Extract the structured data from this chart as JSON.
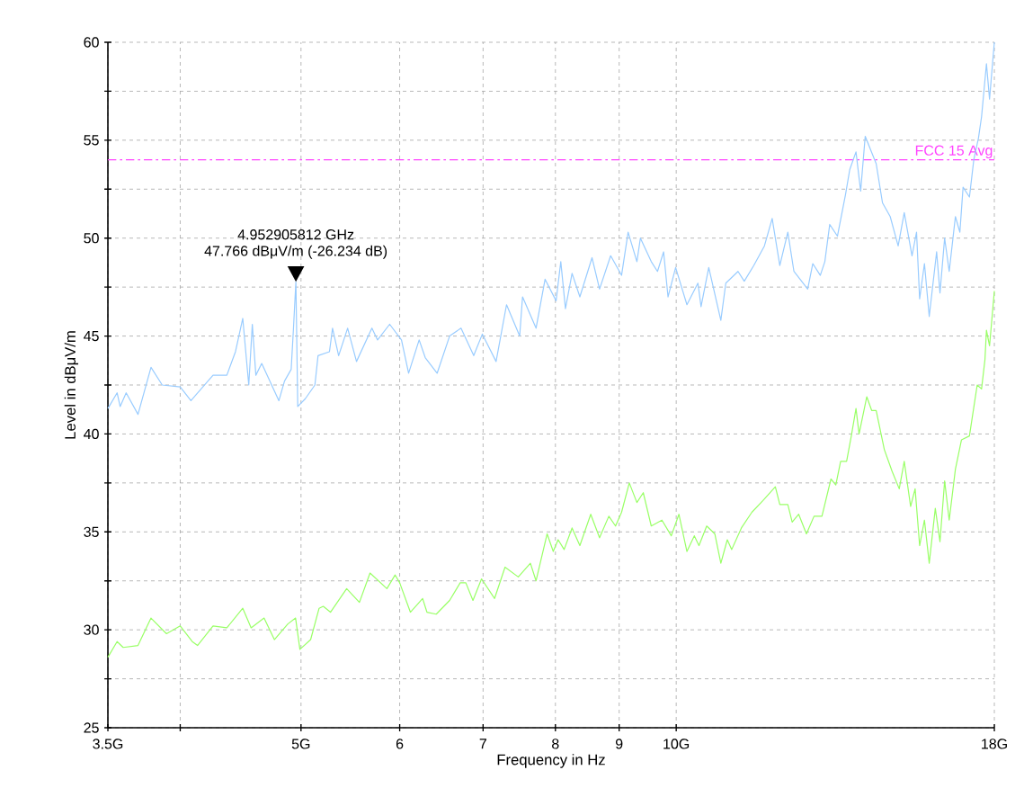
{
  "chart_data": {
    "type": "line",
    "xlabel": "Frequency in Hz",
    "ylabel": "Level in dBμV/m",
    "log": "x",
    "grid": true,
    "xlim": [
      3.5,
      18
    ],
    "ylim": [
      25,
      60
    ],
    "xticks": [
      {
        "value": 3.5,
        "label": "3.5G"
      },
      {
        "value": 4,
        "label": null
      },
      {
        "value": 5,
        "label": "5G"
      },
      6,
      7,
      8,
      9,
      {
        "value": 10,
        "label": "10G"
      },
      {
        "value": 18,
        "label": "18G"
      }
    ],
    "yticks": [
      25,
      {
        "value": 27.5,
        "label": null
      },
      30,
      {
        "value": 32.5,
        "label": null
      },
      35,
      {
        "value": 37.5,
        "label": null
      },
      40,
      {
        "value": 42.5,
        "label": null
      },
      45,
      {
        "value": 47.5,
        "label": null
      },
      50,
      {
        "value": 52.5,
        "label": null
      },
      55,
      {
        "value": 57.5,
        "label": null
      },
      60
    ],
    "ref_lines": [
      {
        "axis": "y",
        "value": 54,
        "label": "FCC 15 Avg",
        "color": "#ff44ff",
        "line_style": "dashdot"
      }
    ],
    "annotations": [
      {
        "text": "4.952905812 GHz",
        "x": 4.952905812,
        "y": 47.766
      },
      {
        "text": "47.766 dBμV/m (-26.234 dB)",
        "x": 4.952905812,
        "y": 47.766
      }
    ],
    "series": [
      {
        "color": "#99ccff",
        "x": [
          3.5,
          3.56,
          3.58,
          3.62,
          3.7,
          3.79,
          3.87,
          4.0,
          4.08,
          4.25,
          4.36,
          4.43,
          4.49,
          4.54,
          4.57,
          4.6,
          4.65,
          4.8,
          4.85,
          4.91,
          4.93,
          4.952905812,
          4.97,
          5.04,
          5.13,
          5.16,
          5.27,
          5.3,
          5.36,
          5.45,
          5.54,
          5.7,
          5.76,
          5.89,
          6.02,
          6.1,
          6.22,
          6.29,
          6.43,
          6.58,
          6.72,
          6.88,
          6.99,
          7.17,
          7.31,
          7.49,
          7.53,
          7.72,
          7.85,
          8.01,
          8.08,
          8.15,
          8.25,
          8.37,
          8.56,
          8.68,
          8.86,
          9.04,
          9.15,
          9.3,
          9.36,
          9.55,
          9.66,
          9.77,
          9.85,
          9.99,
          10.2,
          10.41,
          10.47,
          10.62,
          10.86,
          10.96,
          11.21,
          11.34,
          11.54,
          11.77,
          11.94,
          12.11,
          12.29,
          12.43,
          12.75,
          12.87,
          13.05,
          13.16,
          13.28,
          13.47,
          13.67,
          13.78,
          13.94,
          14.06,
          14.18,
          14.47,
          14.64,
          14.85,
          15.07,
          15.24,
          15.46,
          15.59,
          15.68,
          15.82,
          15.96,
          16.18,
          16.28,
          16.42,
          16.56,
          16.75,
          16.89,
          16.99,
          17.19,
          17.33,
          17.48,
          17.58,
          17.74,
          17.84,
          18.0
        ],
        "values": [
          41.3,
          42.1,
          41.4,
          42.1,
          41.0,
          43.4,
          42.5,
          42.4,
          41.7,
          43.0,
          43.0,
          44.2,
          45.9,
          42.5,
          45.6,
          43.0,
          43.6,
          41.7,
          42.7,
          43.3,
          45.3,
          47.766,
          41.4,
          41.8,
          42.5,
          44.0,
          44.2,
          45.4,
          44.0,
          45.4,
          43.7,
          45.4,
          44.8,
          45.6,
          44.8,
          43.1,
          44.8,
          43.9,
          43.1,
          45.0,
          45.4,
          44.0,
          45.1,
          43.7,
          46.6,
          45.0,
          47.0,
          45.4,
          47.9,
          46.8,
          48.8,
          46.4,
          48.2,
          47.0,
          49.0,
          47.4,
          49.1,
          48.1,
          50.3,
          48.8,
          50.0,
          48.8,
          48.3,
          49.3,
          47.0,
          48.5,
          46.6,
          47.7,
          46.5,
          48.5,
          45.8,
          47.7,
          48.3,
          47.8,
          48.6,
          49.6,
          51.0,
          48.6,
          50.3,
          48.3,
          47.4,
          48.7,
          48.1,
          48.8,
          50.7,
          50.1,
          52.2,
          53.5,
          54.4,
          52.4,
          55.2,
          53.8,
          51.8,
          51.1,
          49.6,
          51.3,
          49.1,
          50.3,
          46.9,
          48.7,
          46.0,
          49.3,
          47.2,
          50.0,
          48.3,
          51.1,
          50.3,
          52.6,
          52.1,
          54.0,
          55.1,
          56.2,
          58.9,
          57.1,
          60.0
        ]
      },
      {
        "color": "#99ff66",
        "x": [
          3.5,
          3.56,
          3.6,
          3.7,
          3.79,
          3.9,
          4.0,
          4.09,
          4.13,
          4.25,
          4.36,
          4.49,
          4.56,
          4.67,
          4.76,
          4.88,
          4.95,
          4.99,
          5.09,
          5.17,
          5.21,
          5.28,
          5.44,
          5.57,
          5.68,
          5.86,
          5.95,
          6.0,
          6.12,
          6.26,
          6.31,
          6.42,
          6.58,
          6.71,
          6.78,
          6.87,
          6.98,
          7.15,
          7.29,
          7.47,
          7.64,
          7.72,
          7.88,
          7.97,
          8.04,
          8.13,
          8.25,
          8.37,
          8.54,
          8.68,
          8.83,
          8.94,
          9.04,
          9.17,
          9.3,
          9.41,
          9.55,
          9.74,
          9.91,
          10.05,
          10.2,
          10.34,
          10.43,
          10.58,
          10.74,
          10.86,
          10.99,
          11.08,
          11.28,
          11.5,
          11.74,
          12.01,
          12.11,
          12.29,
          12.39,
          12.54,
          12.72,
          12.9,
          13.09,
          13.31,
          13.43,
          13.55,
          13.7,
          13.82,
          13.94,
          14.02,
          14.22,
          14.35,
          14.47,
          14.69,
          14.9,
          15.1,
          15.24,
          15.42,
          15.55,
          15.68,
          15.82,
          15.96,
          16.14,
          16.28,
          16.42,
          16.56,
          16.75,
          16.94,
          17.19,
          17.44,
          17.58,
          17.69,
          17.74,
          17.84,
          18.0
        ],
        "values": [
          28.6,
          29.4,
          29.1,
          29.2,
          30.6,
          29.8,
          30.2,
          29.4,
          29.2,
          30.2,
          30.1,
          31.1,
          30.1,
          30.6,
          29.5,
          30.3,
          30.6,
          29.0,
          29.5,
          31.1,
          31.2,
          30.9,
          32.1,
          31.4,
          32.9,
          32.1,
          32.8,
          32.4,
          30.9,
          31.6,
          30.9,
          30.8,
          31.5,
          32.4,
          32.4,
          31.5,
          32.6,
          31.6,
          33.2,
          32.7,
          33.4,
          32.5,
          34.9,
          34.0,
          34.6,
          34.1,
          35.2,
          34.3,
          35.9,
          34.7,
          35.8,
          35.3,
          36.0,
          37.5,
          36.5,
          37.0,
          35.3,
          35.6,
          34.8,
          35.9,
          34.0,
          34.8,
          34.3,
          35.3,
          34.9,
          33.4,
          34.6,
          34.1,
          35.2,
          36.0,
          36.6,
          37.3,
          36.4,
          36.4,
          35.5,
          35.9,
          34.9,
          35.8,
          35.8,
          37.7,
          37.4,
          38.6,
          38.6,
          39.9,
          41.3,
          40.0,
          41.9,
          41.2,
          41.2,
          39.2,
          38.1,
          37.2,
          38.6,
          36.3,
          37.2,
          34.3,
          35.6,
          33.4,
          36.2,
          34.5,
          37.6,
          35.6,
          38.2,
          39.7,
          39.9,
          42.5,
          42.3,
          43.8,
          45.3,
          44.5,
          47.3
        ]
      }
    ]
  }
}
